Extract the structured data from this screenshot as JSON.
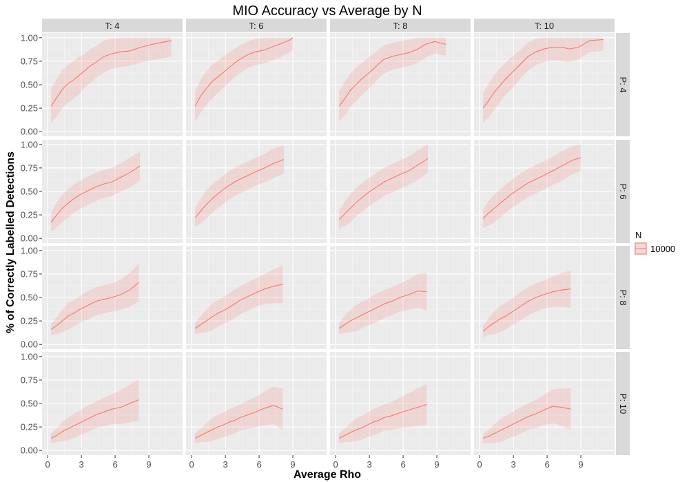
{
  "chart_data": {
    "type": "line",
    "title": "MIO Accuracy vs Average by N",
    "xlabel": "Average Rho",
    "ylabel": "% of Correctly Labelled Detections",
    "xlim": [
      -0.5,
      12
    ],
    "ylim": [
      -0.05,
      1.05
    ],
    "xticks": [
      0,
      3,
      6,
      9
    ],
    "yticks": [
      0.0,
      0.25,
      0.5,
      0.75,
      1.0
    ],
    "xtick_labels": [
      "0",
      "3",
      "6",
      "9"
    ],
    "ytick_labels": [
      "0.00",
      "0.25",
      "0.50",
      "0.75",
      "1.00"
    ],
    "grid": true,
    "legend_position": "right",
    "legend": {
      "title": "N",
      "entries": [
        {
          "label": "10000",
          "color": "#F8766D"
        }
      ]
    },
    "line_color": "#F8766D",
    "ribbon_color": "#F8766D",
    "col_strips": [
      "T: 4",
      "T: 6",
      "T: 8",
      "T: 10"
    ],
    "row_strips": [
      "P: 4",
      "P: 6",
      "P: 8",
      "P: 10"
    ],
    "panels": [
      {
        "row": 0,
        "col": 0,
        "series": "10000",
        "x": [
          0.3,
          0.8,
          1.3,
          1.8,
          2.3,
          2.8,
          3.3,
          3.8,
          4.3,
          5,
          5.7,
          6.5,
          7.3,
          8.3,
          9.3,
          11
        ],
        "y": [
          0.27,
          0.36,
          0.45,
          0.51,
          0.55,
          0.6,
          0.65,
          0.7,
          0.74,
          0.8,
          0.83,
          0.85,
          0.86,
          0.9,
          0.93,
          0.97
        ],
        "band": [
          0.18,
          0.2,
          0.2,
          0.2,
          0.2,
          0.2,
          0.18,
          0.18,
          0.17,
          0.17,
          0.16,
          0.16,
          0.16,
          0.16,
          0.17,
          0.17
        ]
      },
      {
        "row": 0,
        "col": 1,
        "series": "10000",
        "x": [
          0.3,
          0.8,
          1.3,
          1.8,
          2.3,
          2.8,
          3.3,
          3.8,
          4.3,
          5,
          5.7,
          6.5,
          7.3,
          8,
          8.8,
          9
        ],
        "y": [
          0.27,
          0.38,
          0.46,
          0.53,
          0.58,
          0.63,
          0.68,
          0.73,
          0.77,
          0.82,
          0.85,
          0.87,
          0.91,
          0.94,
          0.98,
          1.0
        ],
        "band": [
          0.16,
          0.18,
          0.18,
          0.18,
          0.17,
          0.17,
          0.16,
          0.15,
          0.15,
          0.14,
          0.14,
          0.14,
          0.15,
          0.14,
          0.13,
          0.12
        ]
      },
      {
        "row": 0,
        "col": 2,
        "series": "10000",
        "x": [
          0.3,
          0.8,
          1.3,
          1.8,
          2.3,
          2.8,
          3.3,
          3.8,
          4.3,
          5,
          5.7,
          6.5,
          7.3,
          8,
          8.8,
          9.8
        ],
        "y": [
          0.27,
          0.35,
          0.44,
          0.5,
          0.56,
          0.61,
          0.66,
          0.72,
          0.77,
          0.8,
          0.82,
          0.84,
          0.88,
          0.93,
          0.96,
          0.93
        ],
        "band": [
          0.16,
          0.18,
          0.18,
          0.18,
          0.17,
          0.17,
          0.16,
          0.15,
          0.15,
          0.14,
          0.14,
          0.14,
          0.15,
          0.14,
          0.13,
          0.12
        ]
      },
      {
        "row": 0,
        "col": 3,
        "series": "10000",
        "x": [
          0.3,
          0.8,
          1.3,
          1.8,
          2.3,
          2.8,
          3.3,
          3.8,
          4.3,
          5,
          5.7,
          6.5,
          7.3,
          8,
          8.8,
          9.8,
          11
        ],
        "y": [
          0.25,
          0.33,
          0.42,
          0.49,
          0.56,
          0.62,
          0.68,
          0.74,
          0.8,
          0.85,
          0.88,
          0.9,
          0.9,
          0.88,
          0.9,
          0.97,
          0.98
        ],
        "band": [
          0.16,
          0.18,
          0.18,
          0.18,
          0.17,
          0.17,
          0.16,
          0.15,
          0.15,
          0.14,
          0.14,
          0.14,
          0.15,
          0.14,
          0.13,
          0.12,
          0.12
        ]
      },
      {
        "row": 1,
        "col": 0,
        "series": "10000",
        "x": [
          0.3,
          0.8,
          1.3,
          1.8,
          2.3,
          2.8,
          3.3,
          3.8,
          4.3,
          5,
          5.7,
          6.5,
          7.3,
          8.2
        ],
        "y": [
          0.17,
          0.25,
          0.32,
          0.37,
          0.42,
          0.46,
          0.49,
          0.52,
          0.55,
          0.58,
          0.6,
          0.65,
          0.7,
          0.77
        ],
        "band": [
          0.1,
          0.13,
          0.15,
          0.15,
          0.15,
          0.15,
          0.15,
          0.15,
          0.15,
          0.15,
          0.15,
          0.15,
          0.16,
          0.15
        ]
      },
      {
        "row": 1,
        "col": 1,
        "series": "10000",
        "x": [
          0.3,
          0.8,
          1.3,
          1.8,
          2.3,
          2.8,
          3.3,
          3.8,
          4.3,
          5,
          5.7,
          6.5,
          7.3,
          8.2
        ],
        "y": [
          0.22,
          0.29,
          0.36,
          0.42,
          0.47,
          0.52,
          0.56,
          0.6,
          0.63,
          0.67,
          0.71,
          0.75,
          0.8,
          0.84
        ],
        "band": [
          0.1,
          0.13,
          0.15,
          0.15,
          0.15,
          0.15,
          0.15,
          0.15,
          0.15,
          0.15,
          0.15,
          0.15,
          0.16,
          0.15
        ]
      },
      {
        "row": 1,
        "col": 2,
        "series": "10000",
        "x": [
          0.3,
          0.8,
          1.3,
          1.8,
          2.3,
          2.8,
          3.3,
          3.8,
          4.3,
          5,
          5.7,
          6.5,
          7.3,
          8.2
        ],
        "y": [
          0.2,
          0.26,
          0.32,
          0.38,
          0.43,
          0.48,
          0.52,
          0.56,
          0.6,
          0.64,
          0.68,
          0.72,
          0.78,
          0.85
        ],
        "band": [
          0.1,
          0.13,
          0.15,
          0.15,
          0.15,
          0.15,
          0.15,
          0.15,
          0.15,
          0.15,
          0.15,
          0.15,
          0.16,
          0.15
        ]
      },
      {
        "row": 1,
        "col": 3,
        "series": "10000",
        "x": [
          0.3,
          0.8,
          1.3,
          1.8,
          2.3,
          2.8,
          3.3,
          3.8,
          4.3,
          5,
          5.7,
          6.5,
          7.3,
          8.2,
          9
        ],
        "y": [
          0.21,
          0.27,
          0.32,
          0.37,
          0.42,
          0.47,
          0.51,
          0.55,
          0.59,
          0.63,
          0.67,
          0.72,
          0.77,
          0.83,
          0.86
        ],
        "band": [
          0.1,
          0.13,
          0.15,
          0.15,
          0.15,
          0.15,
          0.15,
          0.15,
          0.15,
          0.15,
          0.15,
          0.15,
          0.16,
          0.15,
          0.14
        ]
      },
      {
        "row": 2,
        "col": 0,
        "series": "10000",
        "x": [
          0.3,
          0.8,
          1.3,
          1.8,
          2.3,
          2.8,
          3.3,
          3.8,
          4.3,
          5,
          5.7,
          6.5,
          7.3,
          8.1
        ],
        "y": [
          0.16,
          0.2,
          0.25,
          0.3,
          0.33,
          0.37,
          0.4,
          0.43,
          0.46,
          0.48,
          0.5,
          0.53,
          0.58,
          0.66
        ],
        "band": [
          0.06,
          0.09,
          0.12,
          0.14,
          0.14,
          0.14,
          0.15,
          0.15,
          0.15,
          0.15,
          0.15,
          0.16,
          0.18,
          0.2
        ]
      },
      {
        "row": 2,
        "col": 1,
        "series": "10000",
        "x": [
          0.3,
          0.8,
          1.3,
          1.8,
          2.3,
          2.8,
          3.3,
          3.8,
          4.3,
          5,
          5.7,
          6.5,
          7.3,
          8.1
        ],
        "y": [
          0.17,
          0.21,
          0.25,
          0.29,
          0.33,
          0.36,
          0.39,
          0.43,
          0.47,
          0.51,
          0.55,
          0.59,
          0.62,
          0.64
        ],
        "band": [
          0.06,
          0.09,
          0.12,
          0.14,
          0.14,
          0.14,
          0.15,
          0.15,
          0.15,
          0.15,
          0.15,
          0.16,
          0.18,
          0.2
        ]
      },
      {
        "row": 2,
        "col": 2,
        "series": "10000",
        "x": [
          0.3,
          0.8,
          1.3,
          1.8,
          2.3,
          2.8,
          3.3,
          3.8,
          4.3,
          5,
          5.7,
          6.5,
          7.3,
          8.1
        ],
        "y": [
          0.17,
          0.21,
          0.25,
          0.28,
          0.31,
          0.34,
          0.37,
          0.4,
          0.43,
          0.46,
          0.5,
          0.53,
          0.57,
          0.56
        ],
        "band": [
          0.06,
          0.09,
          0.12,
          0.14,
          0.14,
          0.14,
          0.15,
          0.15,
          0.15,
          0.15,
          0.15,
          0.16,
          0.18,
          0.2
        ]
      },
      {
        "row": 2,
        "col": 3,
        "series": "10000",
        "x": [
          0.3,
          0.8,
          1.3,
          1.8,
          2.3,
          2.8,
          3.3,
          3.8,
          4.3,
          5,
          5.7,
          6.5,
          7.3,
          8.1
        ],
        "y": [
          0.14,
          0.19,
          0.23,
          0.27,
          0.3,
          0.34,
          0.38,
          0.42,
          0.46,
          0.5,
          0.53,
          0.56,
          0.58,
          0.59
        ],
        "band": [
          0.06,
          0.09,
          0.12,
          0.14,
          0.14,
          0.14,
          0.15,
          0.15,
          0.15,
          0.15,
          0.15,
          0.16,
          0.18,
          0.2
        ]
      },
      {
        "row": 3,
        "col": 0,
        "series": "10000",
        "x": [
          0.3,
          0.8,
          1.3,
          1.8,
          2.3,
          2.8,
          3.3,
          3.8,
          4.3,
          5,
          5.7,
          6.5,
          7.3,
          8.1
        ],
        "y": [
          0.13,
          0.16,
          0.2,
          0.23,
          0.26,
          0.29,
          0.32,
          0.35,
          0.38,
          0.41,
          0.44,
          0.46,
          0.5,
          0.54
        ],
        "band": [
          0.05,
          0.07,
          0.1,
          0.12,
          0.13,
          0.13,
          0.14,
          0.14,
          0.14,
          0.15,
          0.16,
          0.18,
          0.2,
          0.22
        ]
      },
      {
        "row": 3,
        "col": 1,
        "series": "10000",
        "x": [
          0.3,
          0.8,
          1.3,
          1.8,
          2.3,
          2.8,
          3.3,
          3.8,
          4.3,
          5,
          5.7,
          6.5,
          7.3,
          8.1
        ],
        "y": [
          0.13,
          0.16,
          0.19,
          0.22,
          0.25,
          0.27,
          0.3,
          0.32,
          0.35,
          0.38,
          0.41,
          0.45,
          0.48,
          0.44
        ],
        "band": [
          0.05,
          0.07,
          0.1,
          0.12,
          0.13,
          0.13,
          0.14,
          0.14,
          0.14,
          0.15,
          0.16,
          0.18,
          0.2,
          0.22
        ]
      },
      {
        "row": 3,
        "col": 2,
        "series": "10000",
        "x": [
          0.3,
          0.8,
          1.3,
          1.8,
          2.3,
          2.8,
          3.3,
          3.8,
          4.3,
          5,
          5.7,
          6.5,
          7.3,
          8.1
        ],
        "y": [
          0.13,
          0.16,
          0.19,
          0.22,
          0.24,
          0.27,
          0.3,
          0.32,
          0.35,
          0.37,
          0.4,
          0.43,
          0.46,
          0.49
        ],
        "band": [
          0.05,
          0.07,
          0.1,
          0.12,
          0.13,
          0.13,
          0.14,
          0.14,
          0.14,
          0.15,
          0.16,
          0.18,
          0.2,
          0.22
        ]
      },
      {
        "row": 3,
        "col": 3,
        "series": "10000",
        "x": [
          0.3,
          0.8,
          1.3,
          1.8,
          2.3,
          2.8,
          3.3,
          3.8,
          4.3,
          5,
          5.7,
          6.5,
          7.3,
          8.1
        ],
        "y": [
          0.13,
          0.15,
          0.18,
          0.21,
          0.24,
          0.27,
          0.3,
          0.33,
          0.36,
          0.39,
          0.43,
          0.47,
          0.46,
          0.44
        ],
        "band": [
          0.05,
          0.07,
          0.1,
          0.12,
          0.13,
          0.13,
          0.14,
          0.14,
          0.14,
          0.15,
          0.16,
          0.18,
          0.2,
          0.22
        ]
      }
    ]
  }
}
